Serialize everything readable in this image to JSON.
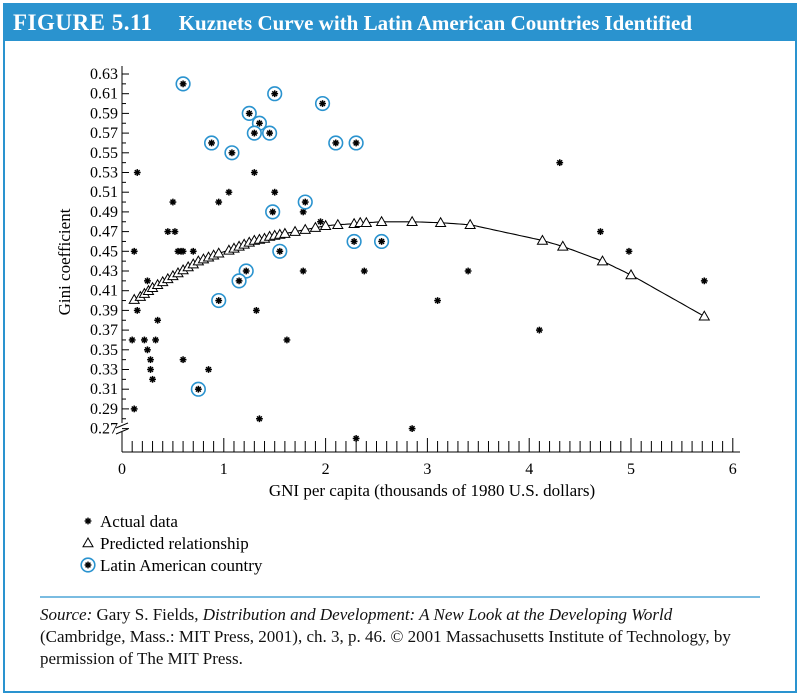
{
  "figure": {
    "label": "FIGURE 5.11",
    "title": "Kuznets Curve with Latin American Countries Identified",
    "accent_color": "#2a93cf"
  },
  "chart_data": {
    "type": "scatter",
    "title": "Kuznets Curve with Latin American Countries Identified",
    "xlabel": "GNI per capita (thousands of 1980 U.S. dollars)",
    "ylabel": "Gini coefficient",
    "xlim": [
      0,
      6
    ],
    "ylim": [
      0.27,
      0.63
    ],
    "x_ticks": [
      "0",
      "1",
      "2",
      "3",
      "4",
      "5",
      "6"
    ],
    "y_ticks": [
      "0.63",
      "0.61",
      "0.59",
      "0.57",
      "0.55",
      "0.53",
      "0.51",
      "0.49",
      "0.47",
      "0.45",
      "0.43",
      "0.41",
      "0.39",
      "0.37",
      "0.35",
      "0.33",
      "0.31",
      "0.29",
      "0.27"
    ],
    "series": [
      {
        "name": "Actual data",
        "marker": "asterisk",
        "points": [
          [
            0.15,
            0.53
          ],
          [
            0.12,
            0.45
          ],
          [
            0.25,
            0.42
          ],
          [
            0.1,
            0.36
          ],
          [
            0.15,
            0.39
          ],
          [
            0.12,
            0.29
          ],
          [
            0.25,
            0.35
          ],
          [
            0.28,
            0.34
          ],
          [
            0.28,
            0.33
          ],
          [
            0.3,
            0.32
          ],
          [
            0.22,
            0.36
          ],
          [
            0.33,
            0.36
          ],
          [
            0.35,
            0.38
          ],
          [
            0.45,
            0.47
          ],
          [
            0.5,
            0.5
          ],
          [
            0.52,
            0.47
          ],
          [
            0.55,
            0.45
          ],
          [
            0.58,
            0.45
          ],
          [
            0.6,
            0.45
          ],
          [
            0.7,
            0.45
          ],
          [
            0.6,
            0.34
          ],
          [
            0.85,
            0.33
          ],
          [
            0.95,
            0.5
          ],
          [
            1.05,
            0.51
          ],
          [
            1.3,
            0.53
          ],
          [
            1.32,
            0.39
          ],
          [
            1.35,
            0.28
          ],
          [
            1.5,
            0.51
          ],
          [
            1.62,
            0.36
          ],
          [
            1.78,
            0.49
          ],
          [
            1.78,
            0.43
          ],
          [
            1.95,
            0.48
          ],
          [
            2.3,
            0.26
          ],
          [
            2.38,
            0.43
          ],
          [
            2.85,
            0.27
          ],
          [
            3.1,
            0.4
          ],
          [
            3.4,
            0.43
          ],
          [
            4.1,
            0.37
          ],
          [
            4.3,
            0.54
          ],
          [
            4.7,
            0.47
          ],
          [
            4.98,
            0.45
          ],
          [
            5.72,
            0.42
          ]
        ]
      },
      {
        "name": "Predicted relationship",
        "marker": "triangle",
        "points": [
          [
            0.12,
            0.401
          ],
          [
            0.18,
            0.404
          ],
          [
            0.22,
            0.407
          ],
          [
            0.26,
            0.41
          ],
          [
            0.3,
            0.413
          ],
          [
            0.35,
            0.416
          ],
          [
            0.4,
            0.419
          ],
          [
            0.45,
            0.422
          ],
          [
            0.5,
            0.425
          ],
          [
            0.55,
            0.428
          ],
          [
            0.6,
            0.431
          ],
          [
            0.65,
            0.434
          ],
          [
            0.7,
            0.437
          ],
          [
            0.75,
            0.44
          ],
          [
            0.8,
            0.442
          ],
          [
            0.85,
            0.444
          ],
          [
            0.9,
            0.446
          ],
          [
            0.95,
            0.448
          ],
          [
            1.05,
            0.451
          ],
          [
            1.1,
            0.453
          ],
          [
            1.15,
            0.455
          ],
          [
            1.2,
            0.457
          ],
          [
            1.25,
            0.459
          ],
          [
            1.3,
            0.461
          ],
          [
            1.35,
            0.462
          ],
          [
            1.4,
            0.463
          ],
          [
            1.45,
            0.465
          ],
          [
            1.5,
            0.466
          ],
          [
            1.55,
            0.467
          ],
          [
            1.6,
            0.468
          ],
          [
            1.7,
            0.47
          ],
          [
            1.8,
            0.472
          ],
          [
            1.9,
            0.474
          ],
          [
            2.0,
            0.476
          ],
          [
            2.12,
            0.477
          ],
          [
            2.28,
            0.478
          ],
          [
            2.34,
            0.479
          ],
          [
            2.4,
            0.479
          ],
          [
            2.55,
            0.48
          ],
          [
            2.85,
            0.48
          ],
          [
            3.13,
            0.479
          ],
          [
            3.42,
            0.477
          ],
          [
            4.13,
            0.461
          ],
          [
            4.33,
            0.455
          ],
          [
            4.72,
            0.44
          ],
          [
            5.0,
            0.426
          ],
          [
            5.72,
            0.384
          ]
        ]
      },
      {
        "name": "Latin American country",
        "marker": "circled-asterisk",
        "points": [
          [
            0.6,
            0.62
          ],
          [
            1.5,
            0.61
          ],
          [
            1.97,
            0.6
          ],
          [
            1.25,
            0.59
          ],
          [
            1.35,
            0.58
          ],
          [
            1.3,
            0.57
          ],
          [
            1.45,
            0.57
          ],
          [
            0.88,
            0.56
          ],
          [
            2.1,
            0.56
          ],
          [
            2.3,
            0.56
          ],
          [
            1.08,
            0.55
          ],
          [
            1.8,
            0.5
          ],
          [
            1.48,
            0.49
          ],
          [
            2.28,
            0.46
          ],
          [
            2.55,
            0.46
          ],
          [
            1.55,
            0.45
          ],
          [
            1.22,
            0.43
          ],
          [
            1.15,
            0.42
          ],
          [
            0.95,
            0.4
          ],
          [
            0.75,
            0.31
          ]
        ]
      }
    ],
    "curve": "fitted quadratic through predicted relationship",
    "legend_placement": "bottom-left"
  },
  "legend": {
    "actual": "Actual data",
    "predicted": "Predicted relationship",
    "latin": "Latin American country"
  },
  "source": {
    "label": "Source:",
    "author": "Gary S. Fields,",
    "book_title": "Distribution and Development: A New Look at the Developing World",
    "rest": "(Cambridge, Mass.: MIT Press, 2001), ch. 3, p. 46. © 2001 Massachusetts Institute of Technology, by permission of The MIT Press."
  }
}
